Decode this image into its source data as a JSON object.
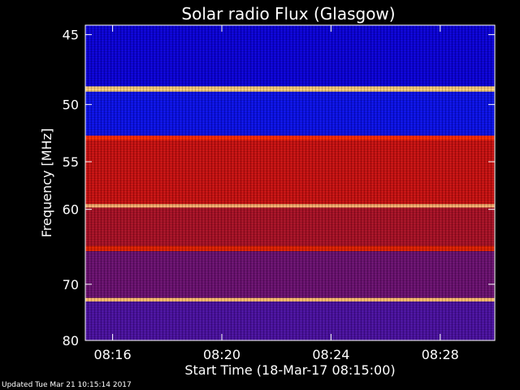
{
  "chart_data": {
    "type": "heatmap",
    "title": "Solar radio Flux (Glasgow)",
    "xlabel": "Start Time (18-Mar-17 08:15:00)",
    "ylabel": "Frequency [MHz]",
    "x_ticks": [
      "08:16",
      "08:20",
      "08:24",
      "08:28"
    ],
    "x_tick_minutes_after_start": [
      1,
      5,
      9,
      13
    ],
    "xlim_minutes_after_start": [
      0,
      15
    ],
    "y_ticks": [
      45,
      50,
      55,
      60,
      70,
      80
    ],
    "ylim_mhz": [
      80,
      44.4
    ],
    "y_scale": "reciprocal",
    "bands": [
      {
        "f_start": 44.4,
        "f_end": 48.6,
        "color": "#0a00d8"
      },
      {
        "f_start": 48.6,
        "f_end": 49.0,
        "color": "#ffd27a"
      },
      {
        "f_start": 49.0,
        "f_end": 52.6,
        "color": "#0a10e8"
      },
      {
        "f_start": 52.6,
        "f_end": 53.0,
        "color": "#ff2a00"
      },
      {
        "f_start": 53.0,
        "f_end": 59.4,
        "color": "#c81010"
      },
      {
        "f_start": 59.4,
        "f_end": 59.8,
        "color": "#ffb070"
      },
      {
        "f_start": 59.8,
        "f_end": 64.5,
        "color": "#a81025"
      },
      {
        "f_start": 64.5,
        "f_end": 65.2,
        "color": "#e02000"
      },
      {
        "f_start": 65.2,
        "f_end": 72.2,
        "color": "#6a1070"
      },
      {
        "f_start": 72.2,
        "f_end": 72.8,
        "color": "#ffc070"
      },
      {
        "f_start": 72.8,
        "f_end": 80.0,
        "color": "#4a10a0"
      }
    ]
  },
  "footer": {
    "updated": "Updated Tue Mar 21 10:15:14 2017"
  }
}
